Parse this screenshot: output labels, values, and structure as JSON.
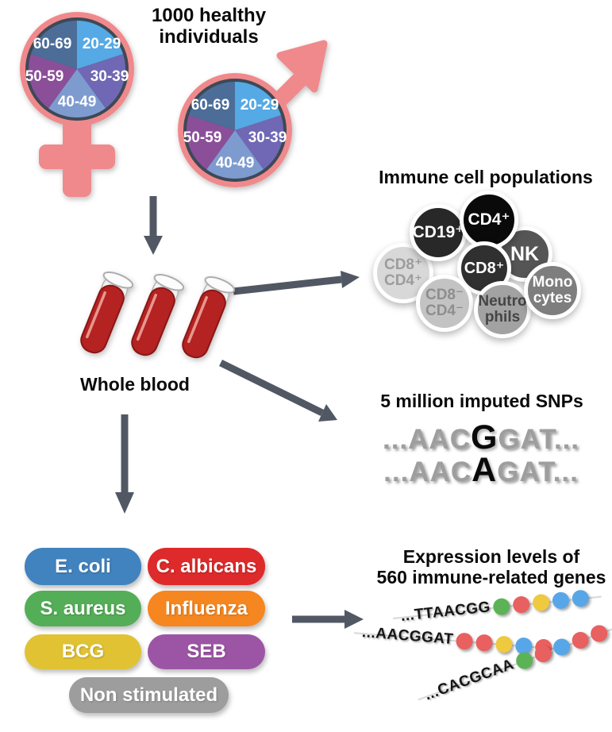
{
  "title": "1000 healthy individuals",
  "cohort": {
    "symbol_color": "#F0898C",
    "pie_border_color": "#3E4856",
    "age_groups": [
      {
        "label": "20-29",
        "color": "#55A9E4"
      },
      {
        "label": "30-39",
        "color": "#6F68B4"
      },
      {
        "label": "40-49",
        "color": "#7E9BD0"
      },
      {
        "label": "50-59",
        "color": "#8B4F99"
      },
      {
        "label": "60-69",
        "color": "#4C6D98"
      }
    ]
  },
  "whole_blood": {
    "label": "Whole blood",
    "tube_color": "#B42420"
  },
  "arrows": {
    "color": "#515864"
  },
  "immune_cells": {
    "title": "Immune cell populations",
    "cells": [
      {
        "lines": [
          "CD8⁺",
          "CD4⁺"
        ],
        "bg": "#D8D8D8",
        "fg": "#9C9C9C"
      },
      {
        "lines": [
          "CD19⁺"
        ],
        "bg": "#282828",
        "fg": "#FFFFFF"
      },
      {
        "lines": [
          "NK"
        ],
        "bg": "#555555",
        "fg": "#FFFFFF"
      },
      {
        "lines": [
          "CD4⁺"
        ],
        "bg": "#0A0A0A",
        "fg": "#FFFFFF"
      },
      {
        "lines": [
          "CD8⁺"
        ],
        "bg": "#303030",
        "fg": "#FFFFFF"
      },
      {
        "lines": [
          "CD8⁻",
          "CD4⁻"
        ],
        "bg": "#C3C3C3",
        "fg": "#8E8E8E"
      },
      {
        "lines": [
          "Neutro",
          "phils"
        ],
        "bg": "#A2A2A2",
        "fg": "#454545"
      },
      {
        "lines": [
          "Mono",
          "cytes"
        ],
        "bg": "#7E7E7E",
        "fg": "#FFFFFF"
      }
    ]
  },
  "snps": {
    "title": "5 million imputed SNPs",
    "sequences": [
      {
        "pre": "...AAC",
        "variant": "G",
        "post": "GAT..."
      },
      {
        "pre": "...AAC",
        "variant": "A",
        "post": "GAT..."
      }
    ]
  },
  "stimuli": {
    "items": [
      {
        "label": "E. coli",
        "color": "#4183BE"
      },
      {
        "label": "C. albicans",
        "color": "#DE2A2A"
      },
      {
        "label": "S. aureus",
        "color": "#53AE57"
      },
      {
        "label": "Influenza",
        "color": "#F6861F"
      },
      {
        "label": "BCG",
        "color": "#E0C233"
      },
      {
        "label": "SEB",
        "color": "#9C55A5"
      },
      {
        "label": "Non stimulated",
        "color": "#9D9D9D"
      }
    ]
  },
  "expression": {
    "title_line1": "Expression levels of",
    "title_line2": "560 immune-related genes",
    "dot_colors": {
      "green": "#5CB356",
      "red": "#E96060",
      "yellow": "#EFC93F",
      "blue": "#57A7E8"
    },
    "strands": [
      {
        "seq": "...TTAACGG",
        "dots": [
          "green",
          "red",
          "yellow",
          "blue",
          "blue"
        ]
      },
      {
        "seq": "...AACGGAT",
        "dots": [
          "red",
          "red",
          "yellow",
          "blue",
          "red"
        ]
      },
      {
        "seq": "...CACGCAA",
        "dots": [
          "green",
          "red",
          "blue",
          "red",
          "red"
        ]
      }
    ]
  }
}
